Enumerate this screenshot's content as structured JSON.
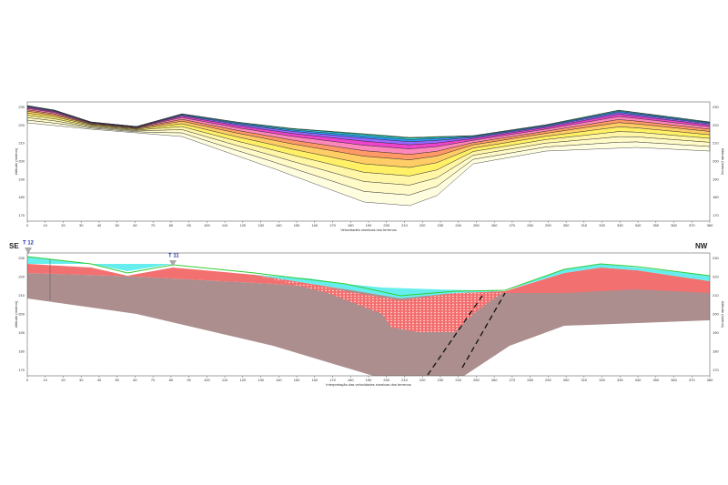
{
  "top_panel": {
    "x_label": "Velocidades sísmicas dos terrenos",
    "y_label": "Altitude (metros)",
    "x_ticks": [
      0,
      10,
      20,
      30,
      40,
      50,
      60,
      70,
      80,
      90,
      100,
      110,
      120,
      130,
      140,
      150,
      160,
      170,
      180,
      190,
      200,
      210,
      220,
      230,
      240,
      250,
      260,
      270,
      280,
      290,
      300,
      310,
      320,
      330,
      340,
      350,
      360,
      370,
      380
    ],
    "y_ticks": [
      230,
      220,
      210,
      200,
      190,
      180,
      170
    ]
  },
  "bottom_panel": {
    "x_label": "Interpretação das velocidades sísmicas dos terrenos",
    "y_label": "Altitude (metros)",
    "x_ticks": [
      0,
      10,
      20,
      30,
      40,
      50,
      60,
      70,
      80,
      90,
      100,
      110,
      120,
      130,
      140,
      150,
      160,
      170,
      180,
      190,
      200,
      210,
      220,
      230,
      240,
      250,
      260,
      270,
      280,
      290,
      300,
      310,
      320,
      330,
      340,
      350,
      360,
      370,
      380
    ],
    "y_ticks": [
      230,
      220,
      210,
      200,
      190,
      180,
      170
    ],
    "left_label": "SE",
    "right_label": "NW",
    "boreholes": [
      "T 12",
      "T 11"
    ]
  }
}
